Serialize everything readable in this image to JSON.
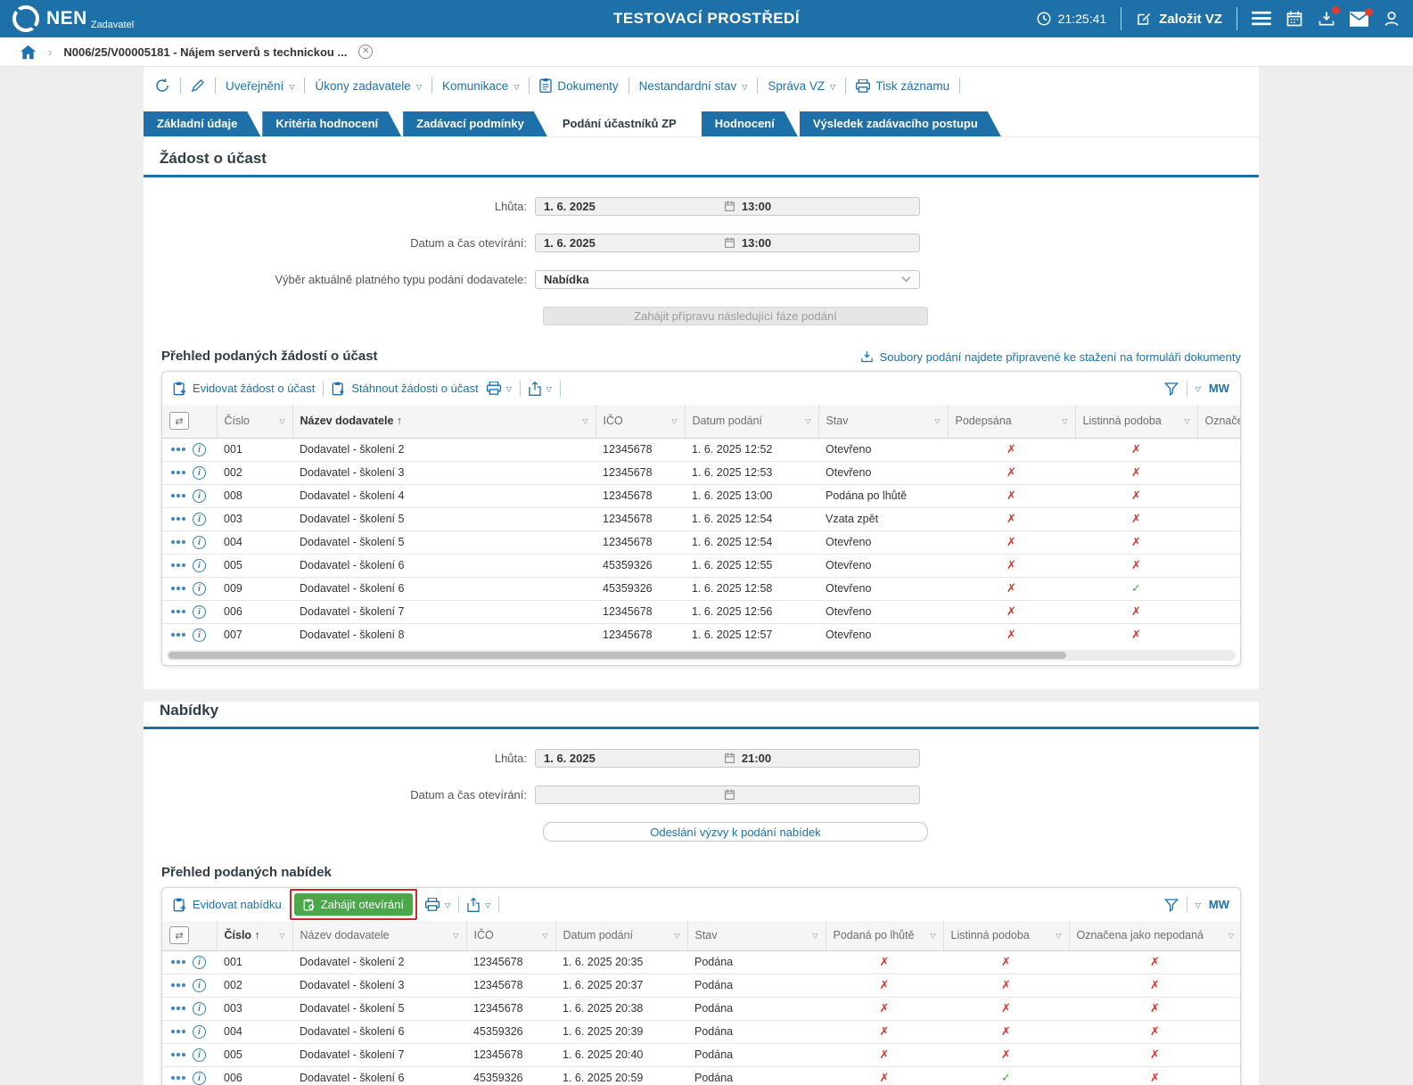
{
  "colors": {
    "accent": "#1e70a8",
    "link": "#1b72b1",
    "green_button": "#4aa74a",
    "status_red": "#dd3327",
    "status_green": "#3fae3f",
    "highlight_box": "#cf2824",
    "notification_dot": "#e03c2e"
  },
  "header": {
    "brand": "NEN",
    "brand_sub": "Zadavatel",
    "env_title": "TESTOVACÍ PROSTŘEDÍ",
    "clock": "21:25:41",
    "create_vz": "Založit VZ"
  },
  "breadcrumb": {
    "item": "N006/25/V00005181 - Nájem serverů s technickou ..."
  },
  "toolbar": {
    "items": [
      "Uveřejnění",
      "Úkony zadavatele",
      "Komunikace",
      "Dokumenty",
      "Nestandardní stav",
      "Správa VZ",
      "Tisk záznamu"
    ]
  },
  "tabs": {
    "items": [
      "Základní údaje",
      "Kritéria hodnocení",
      "Zadávací podmínky",
      "Podání účastníků ZP",
      "Hodnocení",
      "Výsledek zadávacího postupu"
    ],
    "active": "Podání účastníků ZP"
  },
  "zadost": {
    "title": "Žádost o účast",
    "lhuta_label": "Lhůta:",
    "lhuta_date": "1. 6. 2025",
    "lhuta_time": "13:00",
    "otevirani_label": "Datum a čas otevírání:",
    "otevirani_date": "1. 6. 2025",
    "otevirani_time": "13:00",
    "vyber_label": "Výběr aktuálně platného typu podání dodavatele:",
    "vyber_value": "Nabídka",
    "disabled_action": "Zahájit přípravu následující fáze podání",
    "list_title": "Přehled podaných žádostí o účast",
    "files_link": "Soubory podání najdete připravené ke stažení na formuláři dokumenty"
  },
  "zadosti_table": {
    "toolbar": {
      "evidovat": "Evidovat žádost o účast",
      "stahnout": "Stáhnout žádosti o účast",
      "mw": "MW"
    },
    "columns": [
      "Číslo",
      "Název dodavatele",
      "IČO",
      "Datum podání",
      "Stav",
      "Podepsána",
      "Listinná podoba",
      "Označena jako nepodaná"
    ],
    "sorted_column": "Název dodavatele",
    "sort_direction": "asc",
    "rows": [
      [
        "001",
        "Dodavatel - školení 2",
        "12345678",
        "1. 6. 2025 12:52",
        "Otevřeno",
        "x",
        "x"
      ],
      [
        "002",
        "Dodavatel - školení 3",
        "12345678",
        "1. 6. 2025 12:53",
        "Otevřeno",
        "x",
        "x"
      ],
      [
        "008",
        "Dodavatel - školení 4",
        "12345678",
        "1. 6. 2025 13:00",
        "Podána po lhůtě",
        "x",
        "x"
      ],
      [
        "003",
        "Dodavatel - školení 5",
        "12345678",
        "1. 6. 2025 12:54",
        "Vzata zpět",
        "x",
        "x"
      ],
      [
        "004",
        "Dodavatel - školení 5",
        "12345678",
        "1. 6. 2025 12:54",
        "Otevřeno",
        "x",
        "x"
      ],
      [
        "005",
        "Dodavatel - školení 6",
        "45359326",
        "1. 6. 2025 12:55",
        "Otevřeno",
        "x",
        "x"
      ],
      [
        "009",
        "Dodavatel - školení 6",
        "45359326",
        "1. 6. 2025 12:58",
        "Otevřeno",
        "x",
        "check"
      ],
      [
        "006",
        "Dodavatel - školení 7",
        "12345678",
        "1. 6. 2025 12:56",
        "Otevřeno",
        "x",
        "x"
      ],
      [
        "007",
        "Dodavatel - školení 8",
        "12345678",
        "1. 6. 2025 12:57",
        "Otevřeno",
        "x",
        "x"
      ]
    ]
  },
  "nabidky": {
    "title": "Nabídky",
    "lhuta_label": "Lhůta:",
    "lhuta_date": "1. 6. 2025",
    "lhuta_time": "21:00",
    "otevirani_label": "Datum a čas otevírání:",
    "otevirani_value": "",
    "action": "Odeslání výzvy k podání nabídek",
    "list_title": "Přehled podaných nabídek"
  },
  "nabidky_table": {
    "toolbar": {
      "evidovat": "Evidovat nabídku",
      "zahajit": "Zahájit otevírání",
      "mw": "MW"
    },
    "columns": [
      "Číslo",
      "Název dodavatele",
      "IČO",
      "Datum podání",
      "Stav",
      "Podaná po lhůtě",
      "Listinná podoba",
      "Označena jako nepodaná"
    ],
    "sorted_column": "Číslo",
    "sort_direction": "asc",
    "rows": [
      [
        "001",
        "Dodavatel - školení 2",
        "12345678",
        "1. 6. 2025 20:35",
        "Podána",
        "x",
        "x",
        "x"
      ],
      [
        "002",
        "Dodavatel - školení 3",
        "12345678",
        "1. 6. 2025 20:37",
        "Podána",
        "x",
        "x",
        "x"
      ],
      [
        "003",
        "Dodavatel - školení 5",
        "12345678",
        "1. 6. 2025 20:38",
        "Podána",
        "x",
        "x",
        "x"
      ],
      [
        "004",
        "Dodavatel - školení 6",
        "45359326",
        "1. 6. 2025 20:39",
        "Podána",
        "x",
        "x",
        "x"
      ],
      [
        "005",
        "Dodavatel - školení 7",
        "12345678",
        "1. 6. 2025 20:40",
        "Podána",
        "x",
        "x",
        "x"
      ],
      [
        "006",
        "Dodavatel - školení 6",
        "45359326",
        "1. 6. 2025 20:59",
        "Podána",
        "x",
        "check",
        "x"
      ]
    ]
  }
}
